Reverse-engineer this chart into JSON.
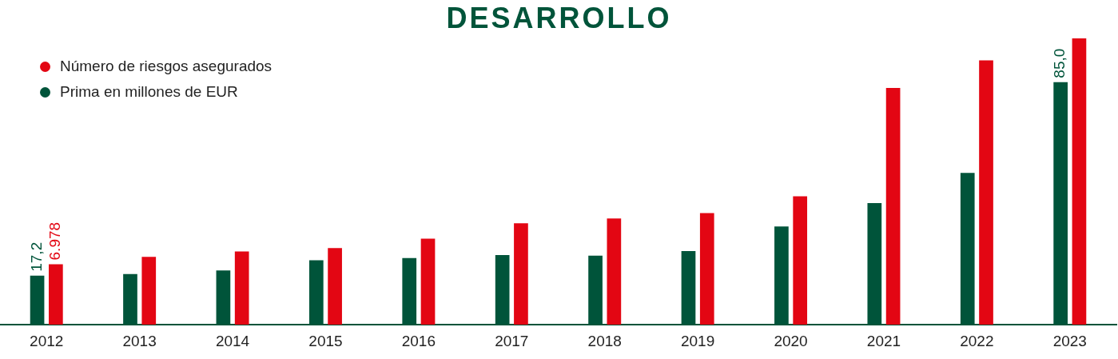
{
  "chart_data": {
    "type": "bar",
    "title": "DESARROLLO",
    "legend": "top left",
    "categories": [
      "2012",
      "2013",
      "2014",
      "2015",
      "2016",
      "2017",
      "2018",
      "2019",
      "2020",
      "2021",
      "2022",
      "2023"
    ],
    "series": [
      {
        "name": "Prima en millones de EUR",
        "color": "#00543a",
        "values": [
          17.2,
          17.8,
          19.0,
          22.6,
          23.4,
          24.4,
          24.2,
          25.8,
          34.4,
          42.6,
          53.2,
          85.0
        ],
        "value_labels": [
          "17,2",
          null,
          null,
          null,
          null,
          null,
          null,
          null,
          null,
          null,
          null,
          "85,0"
        ]
      },
      {
        "name": "Número de riesgos asegurados",
        "color": "#e30613",
        "axis": "y2",
        "values": [
          6978,
          7830,
          8450,
          8840,
          9920,
          11700,
          12250,
          12870,
          14810,
          27290,
          30470,
          33000
        ],
        "value_labels": [
          "6.978",
          null,
          null,
          null,
          null,
          null,
          null,
          null,
          null,
          null,
          null,
          null
        ]
      }
    ]
  }
}
